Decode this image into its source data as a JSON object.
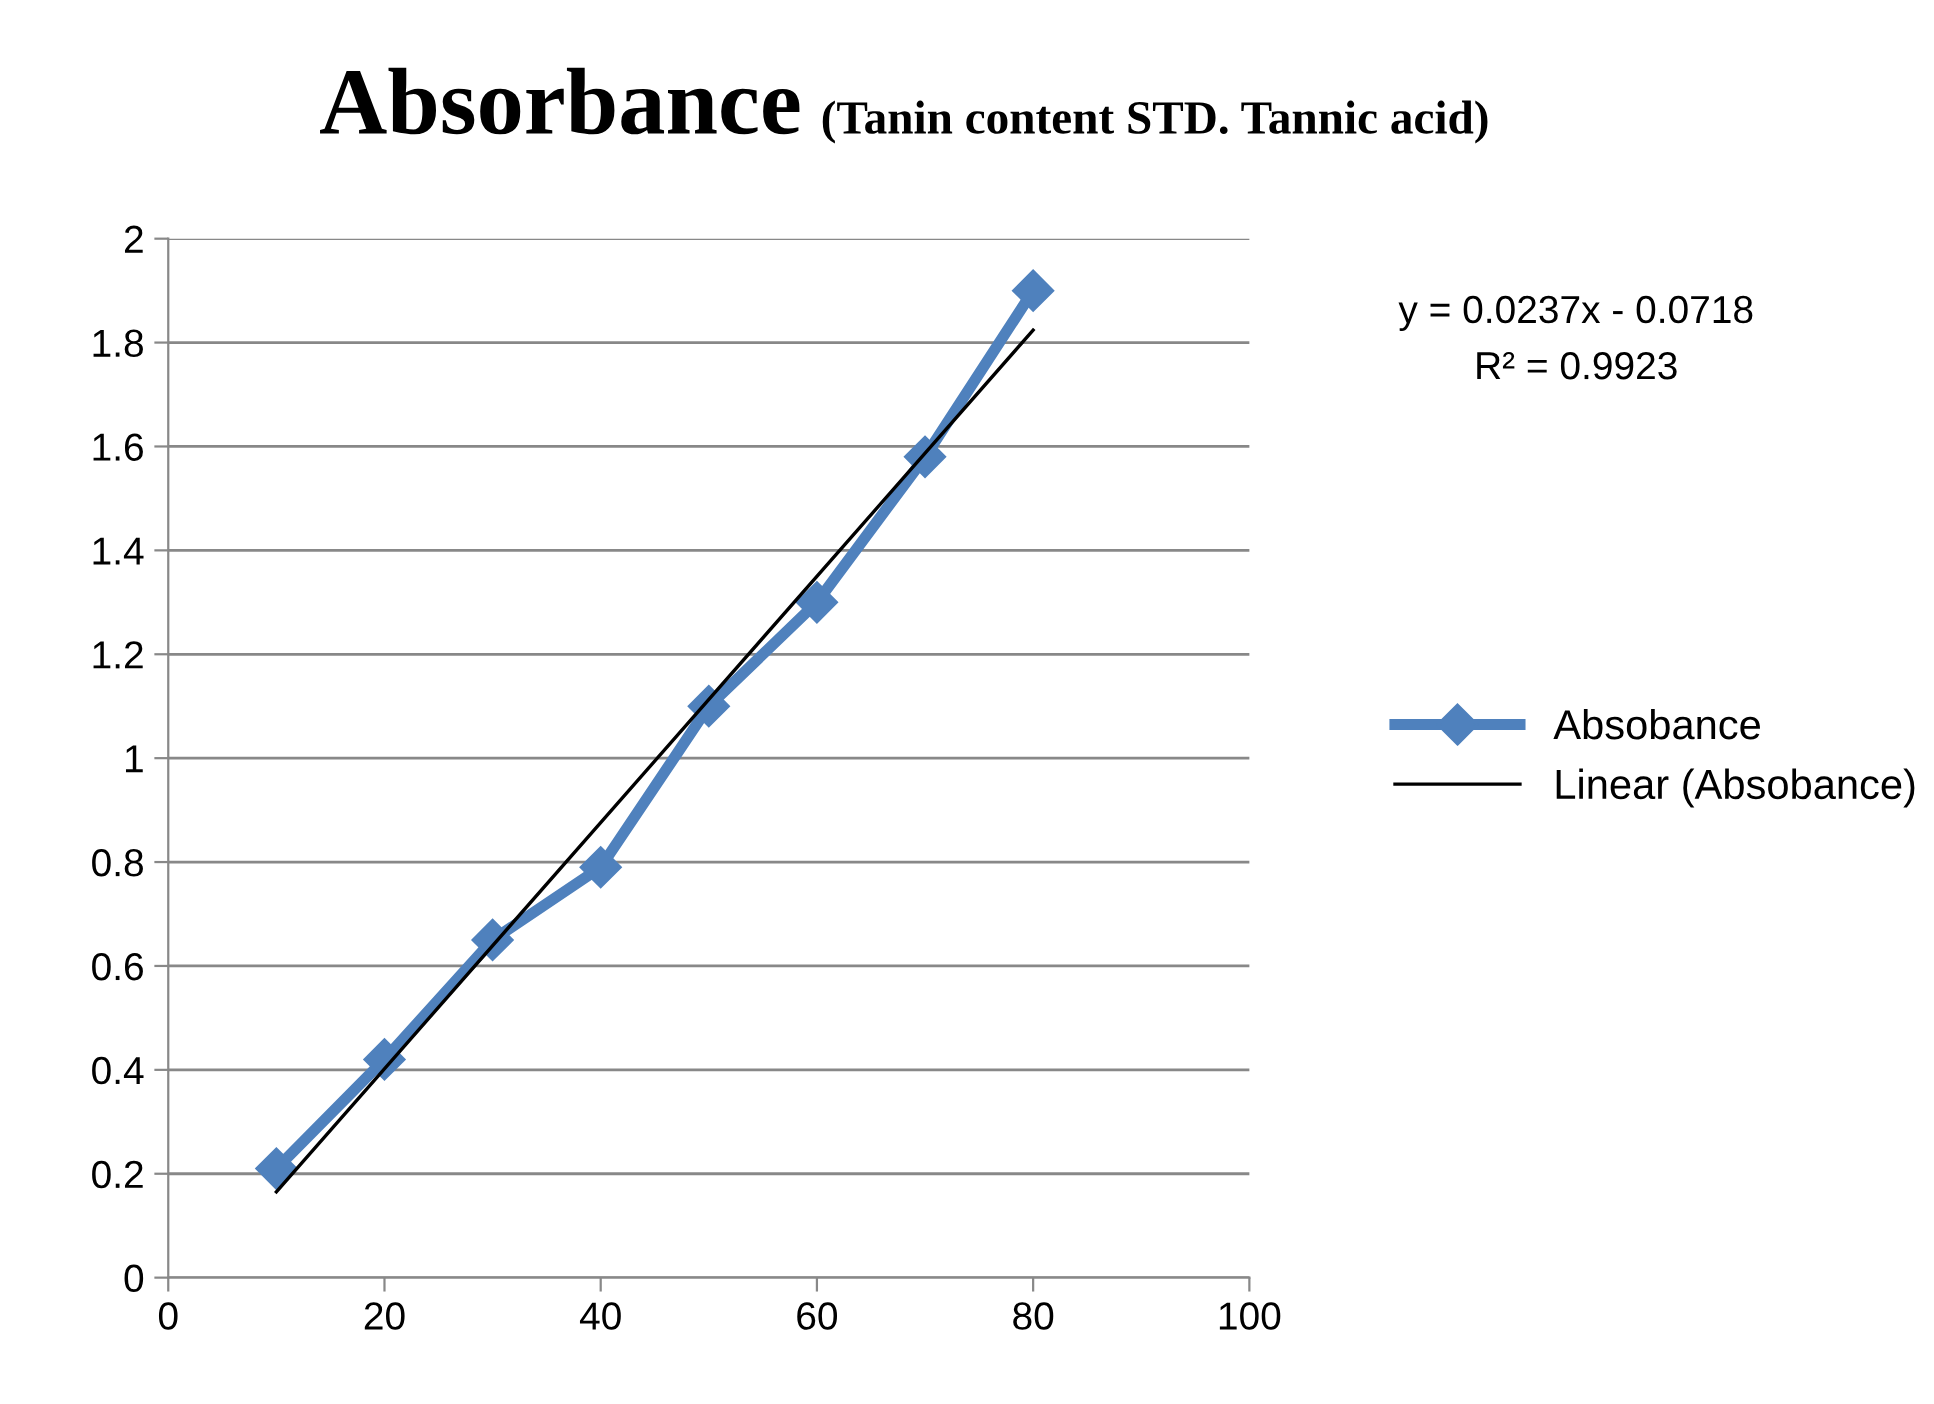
{
  "chart_data": {
    "type": "line",
    "title": "Absorbance",
    "subtitle": "(Tanin content STD. Tannic acid)",
    "annotations": [
      "y = 0.0237x - 0.0718",
      "R² = 0.9923"
    ],
    "series": [
      {
        "name": "Absobance",
        "color": "#4f81bd",
        "marker": "diamond",
        "x": [
          10,
          20,
          30,
          40,
          50,
          60,
          70,
          80
        ],
        "values": [
          0.21,
          0.42,
          0.65,
          0.79,
          1.1,
          1.3,
          1.58,
          1.9
        ]
      },
      {
        "name": "Linear (Absobance)",
        "color": "#000000",
        "marker": "none",
        "x": [
          10,
          80
        ],
        "values": [
          0.165,
          1.824
        ]
      }
    ],
    "xlim": [
      0,
      100
    ],
    "xticks": [
      0,
      20,
      40,
      60,
      80,
      100
    ],
    "ylim": [
      0,
      2
    ],
    "yticks": [
      0,
      0.2,
      0.4,
      0.6,
      0.8,
      1,
      1.2,
      1.4,
      1.6,
      1.8,
      2
    ],
    "grid": "y",
    "legend": "right"
  }
}
